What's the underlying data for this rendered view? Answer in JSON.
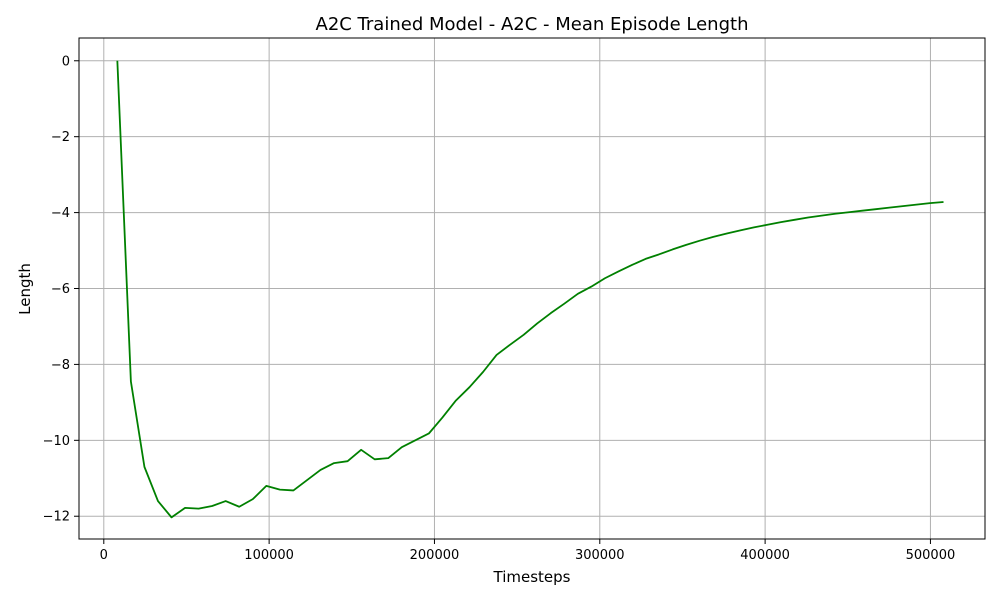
{
  "chart_data": {
    "type": "line",
    "title": "A2C Trained Model - A2C - Mean Episode Length",
    "xlabel": "Timesteps",
    "ylabel": "Length",
    "xlim": [
      -15000,
      533000
    ],
    "ylim": [
      -12.6,
      0.6
    ],
    "xticks": [
      0,
      100000,
      200000,
      300000,
      400000,
      500000
    ],
    "yticks": [
      0,
      -2,
      -4,
      -6,
      -8,
      -10,
      -12
    ],
    "grid": true,
    "line_color": "#008000",
    "series": [
      {
        "x": [
          8192,
          16384,
          24576,
          32768,
          40960,
          49152,
          57344,
          65536,
          73728,
          81920,
          90112,
          98304,
          106496,
          114688,
          122880,
          131072,
          139264,
          147456,
          155648,
          163840,
          172032,
          180224,
          188416,
          196608,
          204800,
          212992,
          221184,
          229376,
          237568,
          245760,
          253952,
          262144,
          270336,
          278528,
          286720,
          294912,
          303104,
          311296,
          319488,
          327680,
          335872,
          344064,
          352256,
          360448,
          368640,
          376832,
          385024,
          393216,
          401408,
          409600,
          417792,
          425984,
          434176,
          442368,
          450560,
          458752,
          466944,
          475136,
          483328,
          491520,
          499712,
          507904
        ],
        "values": [
          0.0,
          -8.45,
          -10.7,
          -11.6,
          -12.03,
          -11.78,
          -11.8,
          -11.73,
          -11.6,
          -11.75,
          -11.55,
          -11.2,
          -11.3,
          -11.32,
          -11.05,
          -10.78,
          -10.6,
          -10.55,
          -10.25,
          -10.5,
          -10.47,
          -10.18,
          -10.0,
          -9.82,
          -9.4,
          -8.95,
          -8.6,
          -8.2,
          -7.75,
          -7.48,
          -7.22,
          -6.92,
          -6.65,
          -6.4,
          -6.14,
          -5.95,
          -5.73,
          -5.55,
          -5.38,
          -5.22,
          -5.1,
          -4.97,
          -4.85,
          -4.74,
          -4.64,
          -4.55,
          -4.47,
          -4.39,
          -4.32,
          -4.25,
          -4.19,
          -4.13,
          -4.08,
          -4.03,
          -3.99,
          -3.95,
          -3.91,
          -3.87,
          -3.83,
          -3.79,
          -3.75,
          -3.72
        ]
      }
    ]
  }
}
